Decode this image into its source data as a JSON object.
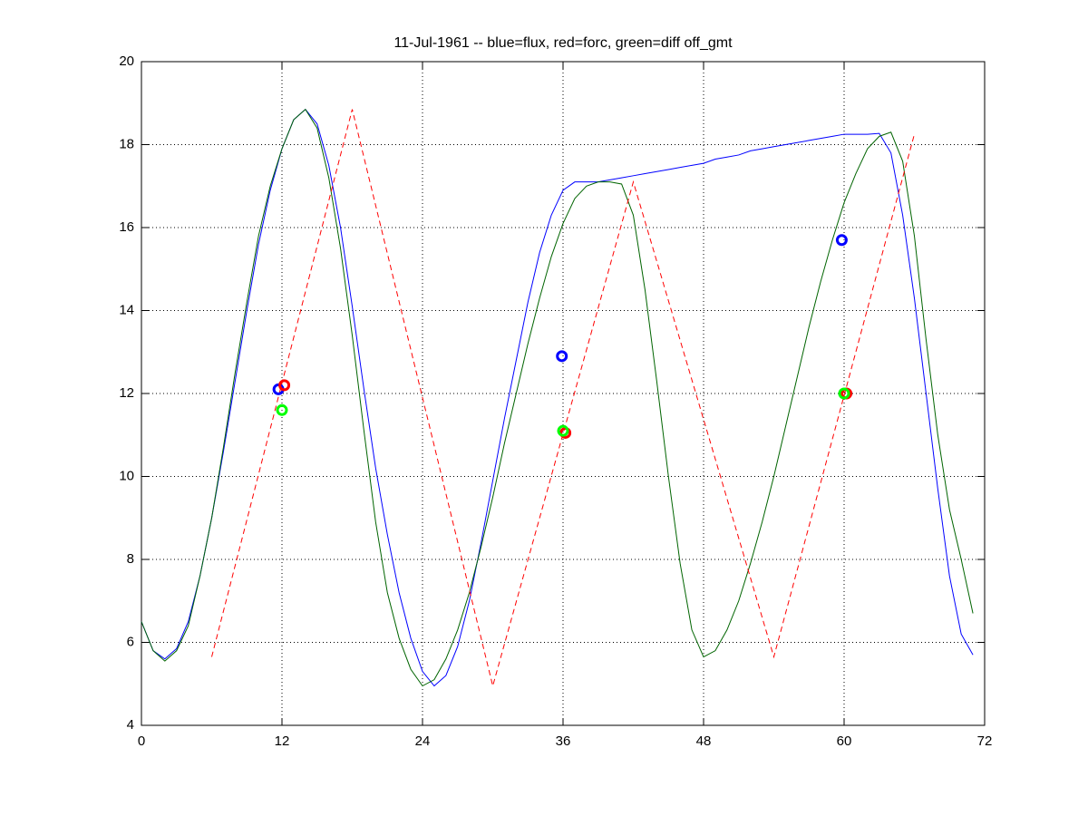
{
  "chart_data": {
    "type": "line",
    "title": "11-Jul-1961 -- blue=flux, red=forc, green=diff off_gmt",
    "xlim": [
      0,
      72
    ],
    "xticks": [
      0,
      12,
      24,
      36,
      48,
      60,
      72
    ],
    "ylim": [
      4,
      20
    ],
    "yticks": [
      4,
      6,
      8,
      10,
      12,
      14,
      16,
      18,
      20
    ],
    "grid": true,
    "series": [
      {
        "color": "#0000ff",
        "linestyle": "solid",
        "x": [
          0,
          1,
          2,
          3,
          4,
          5,
          6,
          7,
          8,
          9,
          10,
          11,
          12,
          13,
          14,
          15,
          16,
          17,
          18,
          19,
          20,
          21,
          22,
          23,
          24,
          25,
          26,
          27,
          28,
          29,
          30,
          31,
          32,
          33,
          34,
          35,
          36,
          37,
          38,
          39,
          40,
          41,
          42,
          43,
          44,
          45,
          46,
          47,
          48,
          49,
          50,
          51,
          52,
          53,
          54,
          55,
          56,
          57,
          58,
          59,
          60,
          61,
          62,
          63,
          64,
          65,
          66,
          67,
          68,
          69,
          70,
          71
        ],
        "values": [
          6.5,
          5.8,
          5.6,
          5.85,
          6.5,
          7.6,
          9.0,
          10.6,
          12.3,
          14.0,
          15.6,
          16.9,
          17.9,
          18.6,
          18.85,
          18.5,
          17.5,
          16.0,
          14.1,
          12.1,
          10.2,
          8.6,
          7.2,
          6.1,
          5.3,
          4.95,
          5.2,
          5.9,
          7.0,
          8.4,
          9.9,
          11.4,
          12.8,
          14.2,
          15.4,
          16.3,
          16.9,
          17.1,
          17.1,
          17.1,
          17.15,
          17.2,
          17.25,
          17.3,
          17.35,
          17.4,
          17.45,
          17.5,
          17.55,
          17.65,
          17.7,
          17.75,
          17.85,
          17.9,
          17.95,
          18.0,
          18.05,
          18.1,
          18.15,
          18.2,
          18.25,
          18.25,
          18.25,
          18.27,
          17.8,
          16.3,
          14.3,
          12.0,
          9.7,
          7.6,
          6.2,
          5.7
        ]
      },
      {
        "color": "#006400",
        "linestyle": "solid",
        "x": [
          0,
          1,
          2,
          3,
          4,
          5,
          6,
          7,
          8,
          9,
          10,
          11,
          12,
          13,
          14,
          15,
          16,
          17,
          18,
          19,
          20,
          21,
          22,
          23,
          24,
          25,
          26,
          27,
          28,
          29,
          30,
          31,
          32,
          33,
          34,
          35,
          36,
          37,
          38,
          39,
          40,
          41,
          42,
          43,
          44,
          45,
          46,
          47,
          48,
          49,
          50,
          51,
          52,
          53,
          54,
          55,
          56,
          57,
          58,
          59,
          60,
          61,
          62,
          63,
          64,
          65,
          66,
          67,
          68,
          69,
          70,
          71
        ],
        "values": [
          6.5,
          5.8,
          5.55,
          5.8,
          6.4,
          7.6,
          9.0,
          10.7,
          12.5,
          14.2,
          15.8,
          17.0,
          17.9,
          18.6,
          18.85,
          18.4,
          17.2,
          15.5,
          13.4,
          11.1,
          8.9,
          7.2,
          6.1,
          5.35,
          4.95,
          5.1,
          5.6,
          6.3,
          7.2,
          8.3,
          9.5,
          10.8,
          12.0,
          13.2,
          14.3,
          15.3,
          16.1,
          16.7,
          17.0,
          17.1,
          17.1,
          17.05,
          16.3,
          14.5,
          12.3,
          10.0,
          7.9,
          6.3,
          5.65,
          5.8,
          6.3,
          7.0,
          7.9,
          8.9,
          10.0,
          11.2,
          12.4,
          13.6,
          14.7,
          15.7,
          16.6,
          17.3,
          17.9,
          18.2,
          18.3,
          17.6,
          15.8,
          13.3,
          11.0,
          9.2,
          8.0,
          6.7
        ]
      },
      {
        "color": "#ff0000",
        "linestyle": "dashed",
        "x": [
          6,
          18,
          30,
          42,
          54,
          66
        ],
        "values": [
          5.65,
          18.85,
          4.95,
          17.1,
          5.65,
          18.25
        ]
      },
      {
        "color": "#0000ff",
        "marker": "o",
        "x": [
          11.7,
          35.9,
          59.8
        ],
        "values": [
          12.1,
          12.9,
          15.7
        ]
      },
      {
        "color": "#ff0000",
        "marker": "o",
        "x": [
          12.2,
          36.2,
          60.2
        ],
        "values": [
          12.2,
          11.05,
          12.0
        ]
      },
      {
        "color": "#00ff00",
        "marker": "o",
        "x": [
          12.0,
          36.0,
          60.0
        ],
        "values": [
          11.6,
          11.1,
          12.0
        ]
      }
    ]
  }
}
